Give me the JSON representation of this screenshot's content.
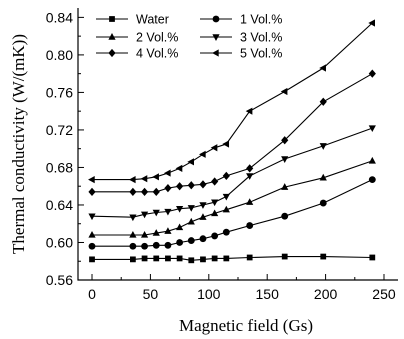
{
  "chart_data": {
    "type": "line",
    "title": "",
    "xlabel": "Magnetic field (Gs)",
    "ylabel": "Thermal conductivity (W/(mK))",
    "xlim": [
      -12,
      262
    ],
    "ylim": [
      0.56,
      0.85
    ],
    "xticks": [
      0,
      50,
      100,
      150,
      200,
      250
    ],
    "xtick_labels": [
      "0",
      "50",
      "100",
      "150",
      "200",
      "250"
    ],
    "yticks": [
      0.56,
      0.6,
      0.64,
      0.68,
      0.72,
      0.76,
      0.8,
      0.84
    ],
    "ytick_labels": [
      "0.56",
      "0.60",
      "0.64",
      "0.68",
      "0.72",
      "0.76",
      "0.80",
      "0.84"
    ],
    "grid": false,
    "legend": "top-left, two columns",
    "series": [
      {
        "name": "Water",
        "marker": "square",
        "x": [
          0,
          35,
          45,
          55,
          65,
          75,
          85,
          95,
          105,
          115,
          135,
          165,
          198,
          240
        ],
        "y": [
          0.582,
          0.582,
          0.583,
          0.583,
          0.583,
          0.583,
          0.581,
          0.582,
          0.583,
          0.583,
          0.584,
          0.585,
          0.585,
          0.584
        ]
      },
      {
        "name": "1 Vol.%",
        "marker": "circle",
        "x": [
          0,
          35,
          45,
          55,
          65,
          75,
          85,
          95,
          105,
          115,
          135,
          165,
          198,
          240
        ],
        "y": [
          0.596,
          0.596,
          0.596,
          0.597,
          0.597,
          0.6,
          0.602,
          0.604,
          0.607,
          0.611,
          0.618,
          0.628,
          0.642,
          0.667
        ]
      },
      {
        "name": "2 Vol.%",
        "marker": "triangle-up",
        "x": [
          0,
          35,
          45,
          55,
          65,
          75,
          85,
          95,
          105,
          115,
          135,
          165,
          198,
          240
        ],
        "y": [
          0.608,
          0.608,
          0.608,
          0.61,
          0.612,
          0.616,
          0.622,
          0.627,
          0.631,
          0.635,
          0.643,
          0.659,
          0.669,
          0.687
        ]
      },
      {
        "name": "3 Vol.%",
        "marker": "triangle-down",
        "x": [
          0,
          35,
          45,
          55,
          65,
          75,
          85,
          95,
          105,
          115,
          135,
          165,
          198,
          240
        ],
        "y": [
          0.628,
          0.627,
          0.63,
          0.632,
          0.633,
          0.636,
          0.637,
          0.64,
          0.643,
          0.649,
          0.671,
          0.689,
          0.703,
          0.722
        ]
      },
      {
        "name": "4 Vol.%",
        "marker": "diamond",
        "x": [
          0,
          35,
          45,
          55,
          65,
          75,
          85,
          95,
          105,
          115,
          135,
          165,
          198,
          240
        ],
        "y": [
          0.654,
          0.654,
          0.654,
          0.654,
          0.658,
          0.66,
          0.661,
          0.662,
          0.665,
          0.671,
          0.679,
          0.709,
          0.75,
          0.78
        ]
      },
      {
        "name": "5 Vol.%",
        "marker": "triangle-left",
        "x": [
          0,
          35,
          45,
          55,
          65,
          75,
          85,
          95,
          105,
          115,
          135,
          165,
          198,
          240
        ],
        "y": [
          0.667,
          0.667,
          0.668,
          0.67,
          0.674,
          0.679,
          0.686,
          0.694,
          0.701,
          0.705,
          0.74,
          0.761,
          0.786,
          0.834
        ]
      }
    ]
  }
}
